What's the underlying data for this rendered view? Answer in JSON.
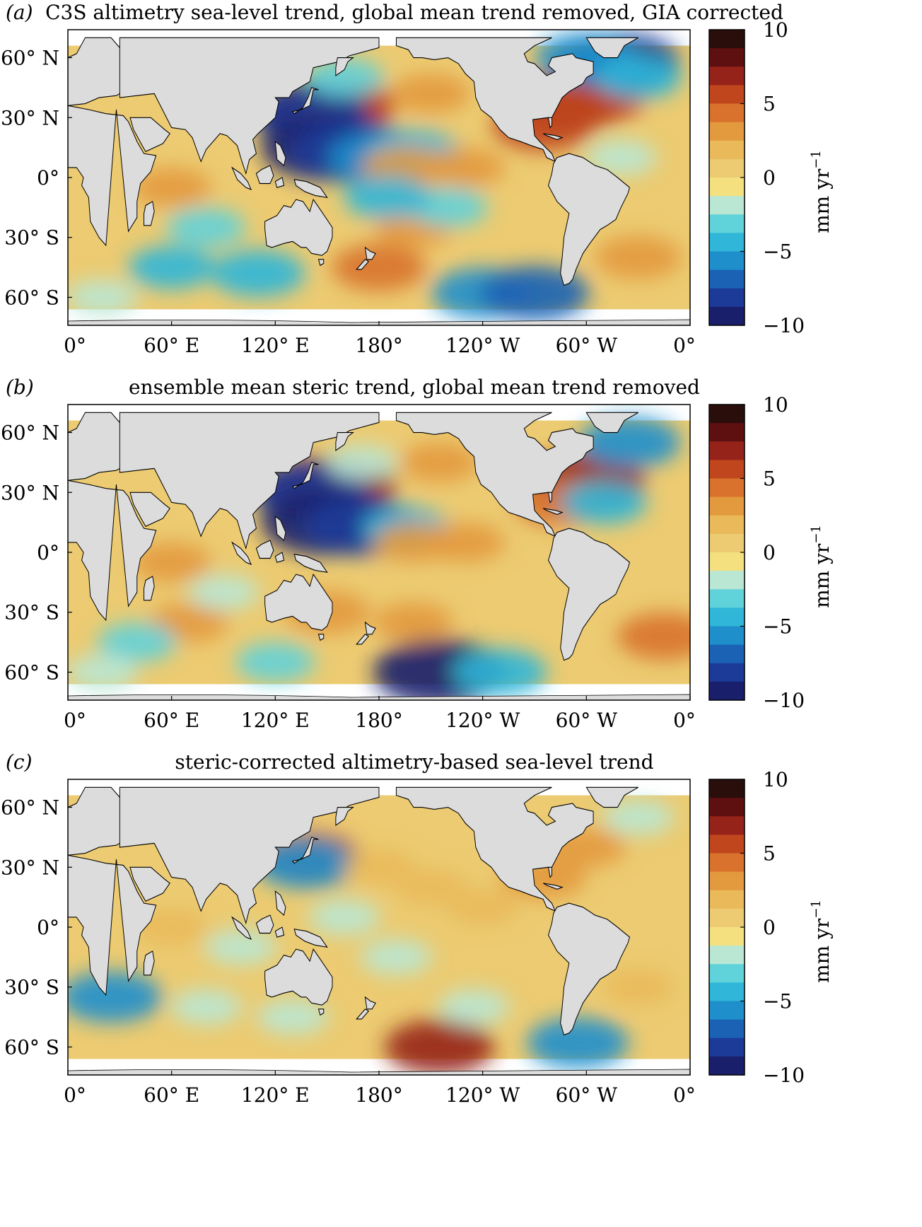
{
  "figure": {
    "colorbar": {
      "ticks": [
        "10",
        "5",
        "0",
        "−5",
        "−10"
      ],
      "unit_label": "mm yr",
      "unit_superscript": "−1",
      "stops": [
        "#2a0e0c",
        "#5e0f10",
        "#96231a",
        "#c0461d",
        "#d8722c",
        "#e3993d",
        "#e9b95a",
        "#eccb72",
        "#f4e07f",
        "#b9e7d4",
        "#5fd2da",
        "#2fb6d8",
        "#1f8fcc",
        "#1b62b4",
        "#1c3b98",
        "#1a1f6c"
      ]
    },
    "x_ticks": [
      "0°",
      "60° E",
      "120° E",
      "180°",
      "120° W",
      "60° W",
      "0°"
    ],
    "y_ticks": [
      "60° N",
      "30° N",
      "0°",
      "30° S",
      "60° S"
    ],
    "panels": [
      {
        "letter": "(a)",
        "title": "C3S altimetry sea-level trend, global mean trend removed, GIA corrected",
        "field": [
          {
            "lon": 145,
            "lat": 33,
            "v": 9
          },
          {
            "lon": 160,
            "lat": 36,
            "v": 6
          },
          {
            "lon": 140,
            "lat": 32,
            "v": -8
          },
          {
            "lon": 150,
            "lat": 15,
            "v": -10
          },
          {
            "lon": 165,
            "lat": 13,
            "v": -9
          },
          {
            "lon": 180,
            "lat": 10,
            "v": -6
          },
          {
            "lon": 200,
            "lat": 12,
            "v": -5
          },
          {
            "lon": 195,
            "lat": 5,
            "v": 4
          },
          {
            "lon": 230,
            "lat": 5,
            "v": 3
          },
          {
            "lon": 210,
            "lat": 42,
            "v": 3
          },
          {
            "lon": 160,
            "lat": 50,
            "v": -3
          },
          {
            "lon": 290,
            "lat": 38,
            "v": 8
          },
          {
            "lon": 305,
            "lat": 40,
            "v": 6
          },
          {
            "lon": 275,
            "lat": 26,
            "v": 6
          },
          {
            "lon": 320,
            "lat": 58,
            "v": -8
          },
          {
            "lon": 300,
            "lat": 60,
            "v": -6
          },
          {
            "lon": 330,
            "lat": 50,
            "v": -4
          },
          {
            "lon": 320,
            "lat": 10,
            "v": -2
          },
          {
            "lon": 60,
            "lat": -5,
            "v": 3
          },
          {
            "lon": 80,
            "lat": -25,
            "v": -3
          },
          {
            "lon": 60,
            "lat": -45,
            "v": -4
          },
          {
            "lon": 110,
            "lat": -48,
            "v": -5
          },
          {
            "lon": 180,
            "lat": -45,
            "v": 5
          },
          {
            "lon": 200,
            "lat": -25,
            "v": 3
          },
          {
            "lon": 240,
            "lat": -58,
            "v": -6
          },
          {
            "lon": 270,
            "lat": -58,
            "v": -7
          },
          {
            "lon": 220,
            "lat": -15,
            "v": -3
          },
          {
            "lon": 330,
            "lat": -40,
            "v": 4
          },
          {
            "lon": 20,
            "lat": -60,
            "v": -2
          },
          {
            "lon": 185,
            "lat": -10,
            "v": -4
          }
        ]
      },
      {
        "letter": "(b)",
        "title": "ensemble mean steric trend, global mean trend removed",
        "field": [
          {
            "lon": 145,
            "lat": 33,
            "v": 8
          },
          {
            "lon": 158,
            "lat": 34,
            "v": 7
          },
          {
            "lon": 140,
            "lat": 31,
            "v": -8
          },
          {
            "lon": 150,
            "lat": 15,
            "v": -10
          },
          {
            "lon": 170,
            "lat": 13,
            "v": -8
          },
          {
            "lon": 195,
            "lat": 12,
            "v": -4
          },
          {
            "lon": 200,
            "lat": 5,
            "v": 3
          },
          {
            "lon": 230,
            "lat": 5,
            "v": 3
          },
          {
            "lon": 215,
            "lat": 45,
            "v": 3
          },
          {
            "lon": 170,
            "lat": 45,
            "v": -2
          },
          {
            "lon": 300,
            "lat": 36,
            "v": 8
          },
          {
            "lon": 285,
            "lat": 25,
            "v": 5
          },
          {
            "lon": 325,
            "lat": 55,
            "v": -6
          },
          {
            "lon": 310,
            "lat": 25,
            "v": -4
          },
          {
            "lon": 60,
            "lat": -5,
            "v": 3
          },
          {
            "lon": 70,
            "lat": -35,
            "v": 3
          },
          {
            "lon": 90,
            "lat": -20,
            "v": -2
          },
          {
            "lon": 40,
            "lat": -45,
            "v": -3
          },
          {
            "lon": 150,
            "lat": -30,
            "v": 4
          },
          {
            "lon": 200,
            "lat": -35,
            "v": 3
          },
          {
            "lon": 215,
            "lat": -60,
            "v": -10
          },
          {
            "lon": 250,
            "lat": -60,
            "v": -5
          },
          {
            "lon": 345,
            "lat": -42,
            "v": 5
          },
          {
            "lon": 120,
            "lat": -55,
            "v": -3
          },
          {
            "lon": 20,
            "lat": -60,
            "v": -2
          }
        ]
      },
      {
        "letter": "(c)",
        "title": "steric-corrected altimetry-based sea-level trend",
        "field": [
          {
            "lon": 140,
            "lat": 35,
            "v": 6
          },
          {
            "lon": 138,
            "lat": 32,
            "v": -6
          },
          {
            "lon": 210,
            "lat": 20,
            "v": 2
          },
          {
            "lon": 180,
            "lat": 30,
            "v": 2
          },
          {
            "lon": 240,
            "lat": 10,
            "v": 2
          },
          {
            "lon": 160,
            "lat": 5,
            "v": -2
          },
          {
            "lon": 300,
            "lat": 40,
            "v": 3
          },
          {
            "lon": 330,
            "lat": 55,
            "v": -2
          },
          {
            "lon": 275,
            "lat": 25,
            "v": 4
          },
          {
            "lon": 25,
            "lat": -35,
            "v": -6
          },
          {
            "lon": 80,
            "lat": -40,
            "v": -2
          },
          {
            "lon": 130,
            "lat": -45,
            "v": -2
          },
          {
            "lon": 215,
            "lat": -60,
            "v": 7
          },
          {
            "lon": 235,
            "lat": -40,
            "v": -2
          },
          {
            "lon": 295,
            "lat": -58,
            "v": -6
          },
          {
            "lon": 330,
            "lat": -30,
            "v": 2
          },
          {
            "lon": 60,
            "lat": 0,
            "v": 2
          },
          {
            "lon": 190,
            "lat": -15,
            "v": -2
          },
          {
            "lon": 100,
            "lat": -10,
            "v": -2
          }
        ]
      }
    ]
  }
}
